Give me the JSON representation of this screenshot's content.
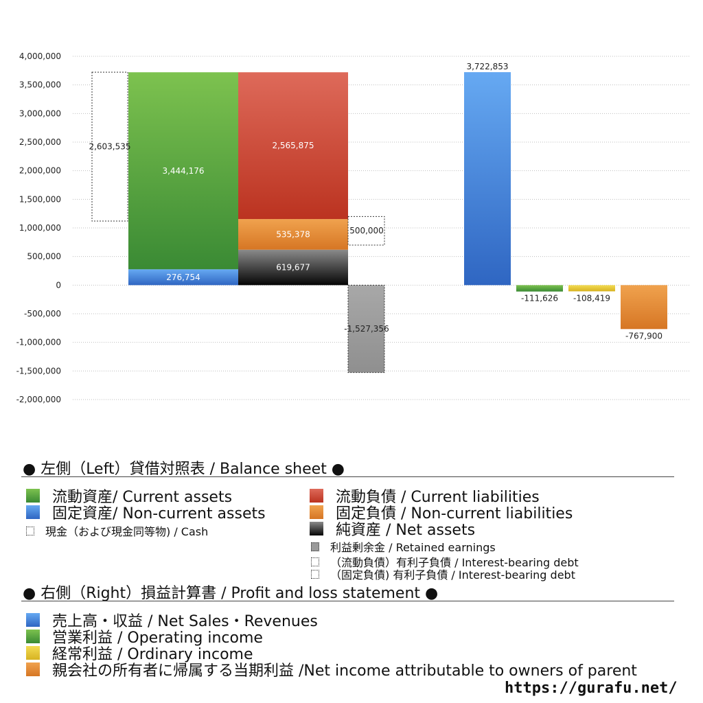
{
  "chart_data": {
    "type": "bar",
    "ylim": [
      -2000000,
      4000000
    ],
    "yticks": [
      4000000,
      3500000,
      3000000,
      2500000,
      2000000,
      1500000,
      1000000,
      500000,
      0,
      -500000,
      -1000000,
      -1500000,
      -2000000
    ],
    "ytick_labels": [
      "4,000,000",
      "3,500,000",
      "3,000,000",
      "2,500,000",
      "2,000,000",
      "1,500,000",
      "1,000,000",
      "500,000",
      "0",
      "-500,000",
      "-1,000,000",
      "-1,500,000",
      "-2,000,000"
    ],
    "grid": true,
    "balance_sheet": {
      "cash": {
        "value": 2603535,
        "label": "2,603,535",
        "bottom": 1119318
      },
      "assets": [
        {
          "key": "non_current_assets",
          "value": 276754,
          "label": "276,754",
          "color": "#3d7fd9"
        },
        {
          "key": "current_assets",
          "value": 3444176,
          "label": "3,444,176",
          "color": "#4a9a3a"
        }
      ],
      "liabilities": [
        {
          "key": "net_assets",
          "value": 619677,
          "label": "619,677",
          "color": "#333333"
        },
        {
          "key": "non_current_liabilities",
          "value": 535378,
          "label": "535,378",
          "color": "#e0822c"
        },
        {
          "key": "current_liabilities",
          "value": 2565875,
          "label": "2,565,875",
          "color": "#cf3f2c"
        }
      ],
      "interest_bearing_debt": {
        "value": 500000,
        "label": "500,000",
        "bottom": 700000
      },
      "retained_earnings": {
        "value": -1527356,
        "label": "-1,527,356",
        "color": "#9a9a9a"
      }
    },
    "profit_loss": [
      {
        "key": "net_sales",
        "value": 3722853,
        "label": "3,722,853",
        "color": "#3d7fd9"
      },
      {
        "key": "operating_income",
        "value": -111626,
        "label": "-111,626",
        "color": "#4a9a3a"
      },
      {
        "key": "ordinary_income",
        "value": -108419,
        "label": "-108,419",
        "color": "#e2c22e"
      },
      {
        "key": "net_income_parent",
        "value": -767900,
        "label": "-767,900",
        "color": "#e0822c"
      }
    ]
  },
  "legend": {
    "left_title": "● 左側（Left）貸借対照表 / Balance sheet ●",
    "current_assets": "流動資産/ Current assets",
    "non_current_assets": "固定資産/ Non-current assets",
    "cash": "現金（および現金同等物) / Cash",
    "current_liabilities": "流動負債 /  Current liabilities",
    "non_current_liabilities": "固定負債 / Non-current liabilities",
    "net_assets": "純資産 / Net assets",
    "retained_earnings": "利益剰余金 / Retained earnings",
    "ibd_current": "（流動負債）有利子負債 / Interest-bearing debt",
    "ibd_noncurrent": "（固定負債) 有利子負債 / Interest-bearing debt",
    "right_title": "● 右側（Right）損益計算書 / Profit and loss statement ●",
    "net_sales": "売上高・収益 / Net Sales・Revenues",
    "operating_income": "営業利益 / Operating income",
    "ordinary_income": "経常利益 / Ordinary income",
    "net_income_parent": "親会社の所有者に帰属する当期利益 /Net income attributable to owners of parent"
  },
  "colors": {
    "green": "#4a9a3a",
    "blue": "#3d7fd9",
    "red": "#cf3f2c",
    "orange": "#e0822c",
    "black": "#333333",
    "gray": "#9a9a9a",
    "yellow": "#e2c22e"
  },
  "site": "https://gurafu.net/"
}
